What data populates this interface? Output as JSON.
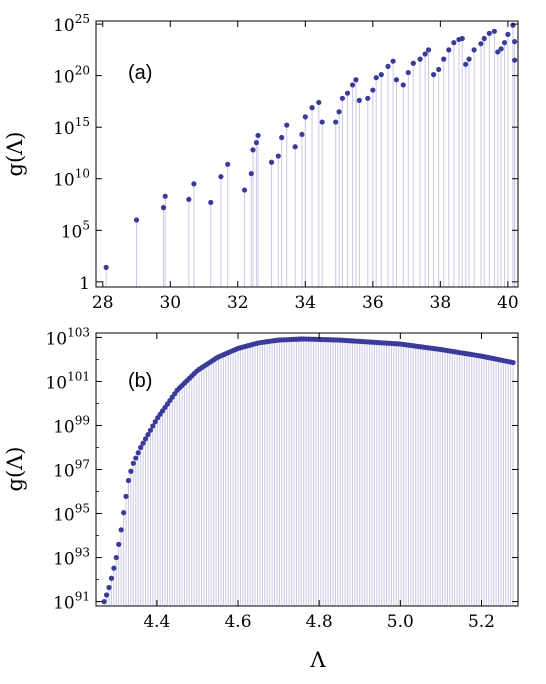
{
  "chart_data": [
    {
      "type": "scatter",
      "panel_label": "(a)",
      "xlabel": "",
      "ylabel": "g(Λ)",
      "xlim": [
        27.8,
        40.3
      ],
      "ylim_log10": [
        -0.5,
        25.3
      ],
      "log_y": true,
      "grid": false,
      "style": "points with vertical drop lines to baseline",
      "colors": {
        "points": "#3a3a9a",
        "droplines": "#c9c9e6"
      },
      "x_ticks": [
        28,
        30,
        32,
        34,
        36,
        38,
        40
      ],
      "y_ticks": [
        {
          "exp": 0,
          "base": "1",
          "sup": ""
        },
        {
          "exp": 5,
          "base": "10",
          "sup": "5"
        },
        {
          "exp": 10,
          "base": "10",
          "sup": "10"
        },
        {
          "exp": 15,
          "base": "10",
          "sup": "15"
        },
        {
          "exp": 20,
          "base": "10",
          "sup": "20"
        },
        {
          "exp": 25,
          "base": "10",
          "sup": "25"
        }
      ],
      "points_log10": [
        [
          28.1,
          1.4
        ],
        [
          29.0,
          6.0
        ],
        [
          29.8,
          7.2
        ],
        [
          29.85,
          8.3
        ],
        [
          30.55,
          8.0
        ],
        [
          30.7,
          9.5
        ],
        [
          31.2,
          7.7
        ],
        [
          31.5,
          10.2
        ],
        [
          31.7,
          11.4
        ],
        [
          32.2,
          8.9
        ],
        [
          32.4,
          10.5
        ],
        [
          32.45,
          12.8
        ],
        [
          32.55,
          13.5
        ],
        [
          32.6,
          14.2
        ],
        [
          33.0,
          11.6
        ],
        [
          33.2,
          12.2
        ],
        [
          33.3,
          14.0
        ],
        [
          33.45,
          15.2
        ],
        [
          33.7,
          13.1
        ],
        [
          33.9,
          14.3
        ],
        [
          34.0,
          16.0
        ],
        [
          34.2,
          16.9
        ],
        [
          34.4,
          17.4
        ],
        [
          34.5,
          15.5
        ],
        [
          34.9,
          15.5
        ],
        [
          35.0,
          16.5
        ],
        [
          35.1,
          17.8
        ],
        [
          35.25,
          18.3
        ],
        [
          35.4,
          19.1
        ],
        [
          35.5,
          19.6
        ],
        [
          35.6,
          17.6
        ],
        [
          35.85,
          17.8
        ],
        [
          36.0,
          18.6
        ],
        [
          36.1,
          19.8
        ],
        [
          36.25,
          20.1
        ],
        [
          36.45,
          20.9
        ],
        [
          36.6,
          21.4
        ],
        [
          36.7,
          19.6
        ],
        [
          36.9,
          19.1
        ],
        [
          37.05,
          20.3
        ],
        [
          37.2,
          21.2
        ],
        [
          37.4,
          21.6
        ],
        [
          37.55,
          22.1
        ],
        [
          37.65,
          22.5
        ],
        [
          37.8,
          20.1
        ],
        [
          37.95,
          20.6
        ],
        [
          38.1,
          21.6
        ],
        [
          38.25,
          22.5
        ],
        [
          38.4,
          23.2
        ],
        [
          38.55,
          23.5
        ],
        [
          38.65,
          23.6
        ],
        [
          38.75,
          21.1
        ],
        [
          38.85,
          21.6
        ],
        [
          39.0,
          22.5
        ],
        [
          39.2,
          23.1
        ],
        [
          39.3,
          23.6
        ],
        [
          39.45,
          24.1
        ],
        [
          39.6,
          24.3
        ],
        [
          39.7,
          22.3
        ],
        [
          39.8,
          22.6
        ],
        [
          39.9,
          23.2
        ],
        [
          40.0,
          24.0
        ],
        [
          40.15,
          24.9
        ],
        [
          40.2,
          23.3
        ],
        [
          40.2,
          21.5
        ]
      ]
    },
    {
      "type": "scatter",
      "panel_label": "(b)",
      "xlabel": "Λ",
      "ylabel": "g(Λ)",
      "xlim": [
        4.25,
        5.29
      ],
      "ylim_log10": [
        90.8,
        103.2
      ],
      "log_y": true,
      "grid": false,
      "style": "points with vertical drop lines to baseline",
      "colors": {
        "points": "#3a3a9a",
        "droplines": "#c9c9e6"
      },
      "x_ticks": [
        {
          "v": 4.4,
          "label": "4.4"
        },
        {
          "v": 4.6,
          "label": "4.6"
        },
        {
          "v": 4.8,
          "label": "4.8"
        },
        {
          "v": 5.0,
          "label": "5.0"
        },
        {
          "v": 5.2,
          "label": "5.2"
        }
      ],
      "y_ticks": [
        {
          "exp": 91,
          "base": "10",
          "sup": "91"
        },
        {
          "exp": 93,
          "base": "10",
          "sup": "93"
        },
        {
          "exp": 95,
          "base": "10",
          "sup": "95"
        },
        {
          "exp": 97,
          "base": "10",
          "sup": "97"
        },
        {
          "exp": 99,
          "base": "10",
          "sup": "99"
        },
        {
          "exp": 101,
          "base": "10",
          "sup": "101"
        },
        {
          "exp": 103,
          "base": "10",
          "sup": "103"
        }
      ],
      "curve_knots_log10": [
        [
          4.27,
          91.0
        ],
        [
          4.28,
          91.5
        ],
        [
          4.29,
          92.2
        ],
        [
          4.3,
          93.0
        ],
        [
          4.31,
          94.0
        ],
        [
          4.32,
          95.3
        ],
        [
          4.33,
          96.5
        ],
        [
          4.34,
          97.2
        ],
        [
          4.36,
          98.0
        ],
        [
          4.4,
          99.3
        ],
        [
          4.45,
          100.6
        ],
        [
          4.5,
          101.5
        ],
        [
          4.55,
          102.1
        ],
        [
          4.6,
          102.5
        ],
        [
          4.65,
          102.75
        ],
        [
          4.7,
          102.88
        ],
        [
          4.76,
          102.93
        ],
        [
          4.85,
          102.88
        ],
        [
          5.0,
          102.7
        ],
        [
          5.1,
          102.45
        ],
        [
          5.2,
          102.15
        ],
        [
          5.28,
          101.85
        ]
      ],
      "point_step": 0.006
    }
  ]
}
